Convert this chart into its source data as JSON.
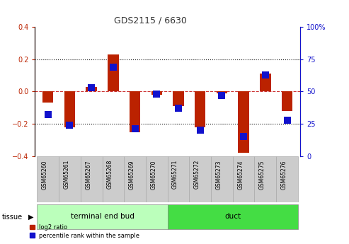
{
  "title": "GDS2115 / 6630",
  "samples": [
    "GSM65260",
    "GSM65261",
    "GSM65267",
    "GSM65268",
    "GSM65269",
    "GSM65270",
    "GSM65271",
    "GSM65272",
    "GSM65273",
    "GSM65274",
    "GSM65275",
    "GSM65276"
  ],
  "log2_ratio": [
    -0.07,
    -0.22,
    0.03,
    0.23,
    -0.25,
    -0.02,
    -0.09,
    -0.22,
    -0.01,
    -0.38,
    0.11,
    -0.12
  ],
  "percentile_rank": [
    32,
    24,
    53,
    69,
    21,
    48,
    37,
    20,
    47,
    15,
    63,
    28
  ],
  "groups": [
    {
      "label": "terminal end bud",
      "start": 0,
      "end": 6
    },
    {
      "label": "duct",
      "start": 6,
      "end": 12
    }
  ],
  "ylim_left": [
    -0.4,
    0.4
  ],
  "ylim_right": [
    0,
    100
  ],
  "yticks_left": [
    -0.4,
    -0.2,
    0.0,
    0.2,
    0.4
  ],
  "yticks_right": [
    0,
    25,
    50,
    75,
    100
  ],
  "bar_color_red": "#BB2200",
  "bar_color_blue": "#1111CC",
  "zero_line_color": "#CC3333",
  "dotted_line_color": "#111111",
  "background_color": "#ffffff",
  "red_bar_width": 0.5,
  "blue_marker_size": 60,
  "group_color_light": "#BBFFBB",
  "group_color_dark": "#44DD44",
  "label_box_color": "#CCCCCC"
}
